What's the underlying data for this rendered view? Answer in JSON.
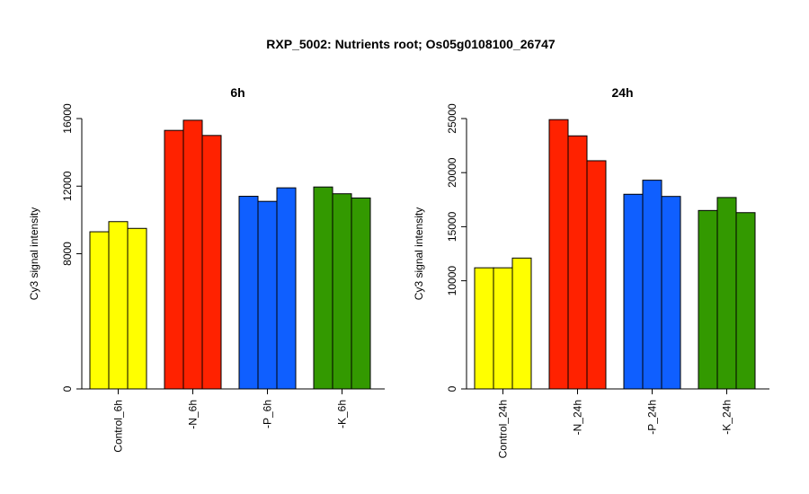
{
  "figure": {
    "title": "RXP_5002: Nutrients root; Os05g0108100_26747"
  },
  "chart_data": [
    {
      "type": "bar",
      "title": "6h",
      "ylabel": "Cy3 signal intensity",
      "ylim": [
        0,
        16000
      ],
      "yticks": [
        "0",
        "8000",
        "12000",
        "16000"
      ],
      "ytick_values": [
        0,
        8000,
        12000,
        16000
      ],
      "categories": [
        "Control_6h",
        "-N_6h",
        "-P_6h",
        "-K_6h"
      ],
      "colors": [
        "#ffff00",
        "#ff2200",
        "#0f5fff",
        "#339900"
      ],
      "replicates": [
        [
          9300,
          9900,
          9500
        ],
        [
          15300,
          15900,
          15000
        ],
        [
          11400,
          11100,
          11900
        ],
        [
          11950,
          11550,
          11300
        ]
      ]
    },
    {
      "type": "bar",
      "title": "24h",
      "ylabel": "Cy3 signal intensity",
      "ylim": [
        0,
        25000
      ],
      "yticks": [
        "0",
        "10000",
        "15000",
        "20000",
        "25000"
      ],
      "ytick_values": [
        0,
        10000,
        15000,
        20000,
        25000
      ],
      "categories": [
        "Control_24h",
        "-N_24h",
        "-P_24h",
        "-K_24h"
      ],
      "colors": [
        "#ffff00",
        "#ff2200",
        "#0f5fff",
        "#339900"
      ],
      "replicates": [
        [
          11200,
          11200,
          12100
        ],
        [
          24900,
          23400,
          21100
        ],
        [
          18000,
          19300,
          17800
        ],
        [
          16500,
          17700,
          16300
        ]
      ]
    }
  ]
}
